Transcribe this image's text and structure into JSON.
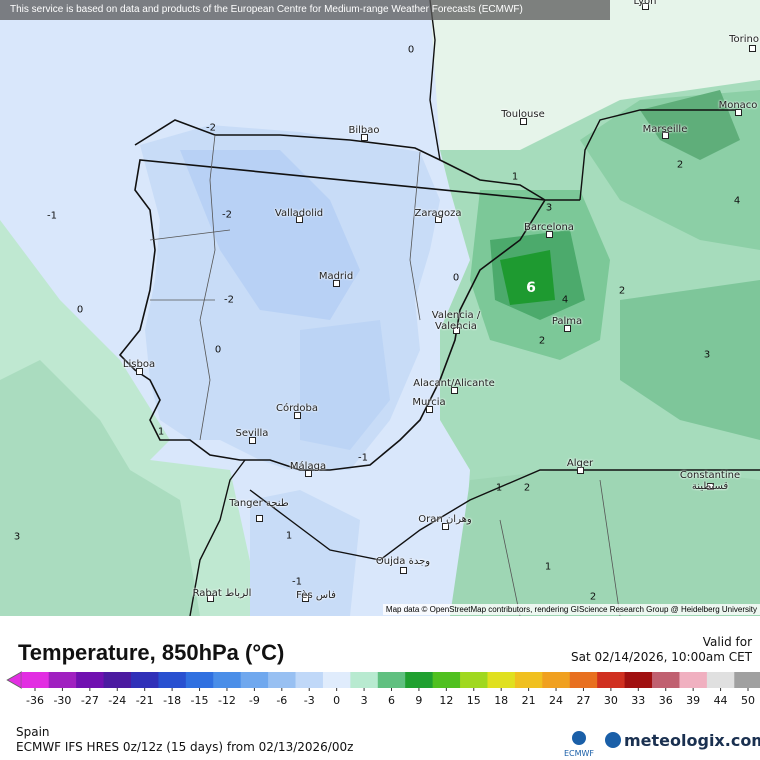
{
  "banner": "This service is based on data and products of the European Centre for Medium-range Weather Forecasts (ECMWF)",
  "map": {
    "attribution": "Map data © OpenStreetMap contributors, rendering GIScience Research Group @ Heidelberg University",
    "cities": [
      "Lyon",
      "Torino",
      "Monaco",
      "Marseille",
      "Toulouse",
      "Bilbao",
      "Valladolid",
      "Zaragoza",
      "Barcelona",
      "Madrid",
      "Valencia /\nValencia",
      "Palma",
      "Lisboa",
      "Córdoba",
      "Sevilla",
      "Alacant/Alicante",
      "Murcia",
      "Málaga",
      "Alger",
      "Constantine قسنطينة",
      "Tanger طنجة",
      "Oran وهران",
      "Oujda وجدة",
      "Rabat الرباط",
      "Fès فاس"
    ],
    "contour_labels": [
      0,
      -2,
      -1,
      -2,
      0,
      -2,
      0,
      1,
      3,
      -1,
      0,
      1,
      3,
      6,
      4,
      2,
      2,
      2,
      1,
      2,
      4,
      3,
      1,
      2,
      -1,
      1
    ]
  },
  "legend": {
    "title": "Temperature, 850hPa (°C)",
    "valid_label": "Valid for",
    "valid_time": "Sat 02/14/2026, 10:00am CET",
    "ticks": [
      -36,
      -30,
      -27,
      -24,
      -21,
      -18,
      -15,
      -12,
      -9,
      -6,
      -3,
      0,
      3,
      6,
      9,
      12,
      15,
      18,
      21,
      24,
      27,
      30,
      33,
      36,
      39,
      44,
      50
    ],
    "colors": [
      "#e22ee2",
      "#a020c0",
      "#7010b0",
      "#4b1aa0",
      "#3030b8",
      "#2850d0",
      "#3070e0",
      "#4a8ee8",
      "#70a8ee",
      "#98c0f2",
      "#c0d8f8",
      "#e0ecfc",
      "#b8ead0",
      "#60c080",
      "#20a030",
      "#50c020",
      "#a0d820",
      "#e0e020",
      "#f0c020",
      "#f0a020",
      "#e87020",
      "#d03020",
      "#a01010",
      "#c06070",
      "#f0b0c0",
      "#e0e0e0",
      "#a0a0a0"
    ],
    "region": "Spain",
    "model": "ECMWF IFS HRES 0z/12z (15 days) from  02/13/2026/00z",
    "ecmwf": "ECMWF",
    "brand": "meteologix.com"
  }
}
